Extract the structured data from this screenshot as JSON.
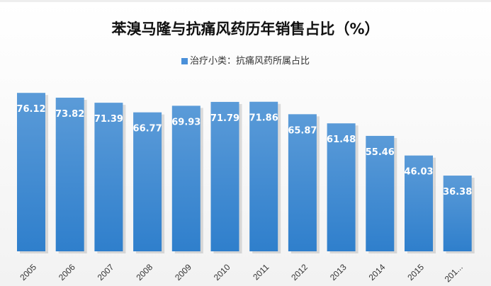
{
  "chart_data": {
    "type": "bar",
    "title": "苯溴马隆与抗痛风药历年销售占比（%）",
    "legend": {
      "position": "top",
      "entries": [
        "治疗小类：抗痛风药所属占比"
      ]
    },
    "categories": [
      "2005",
      "2006",
      "2007",
      "2008",
      "2009",
      "2010",
      "2011",
      "2012",
      "2013",
      "2014",
      "2015",
      "201..."
    ],
    "series": [
      {
        "name": "治疗小类：抗痛风药所属占比",
        "values": [
          76.12,
          73.82,
          71.39,
          66.77,
          69.93,
          71.79,
          71.86,
          65.87,
          61.48,
          55.46,
          46.03,
          36.38
        ]
      }
    ],
    "data_labels": true,
    "grid": false,
    "colors": {
      "bar_top": "#5b9bd8",
      "bar_bottom": "#2f7fcc",
      "label": "#ffffff"
    }
  }
}
